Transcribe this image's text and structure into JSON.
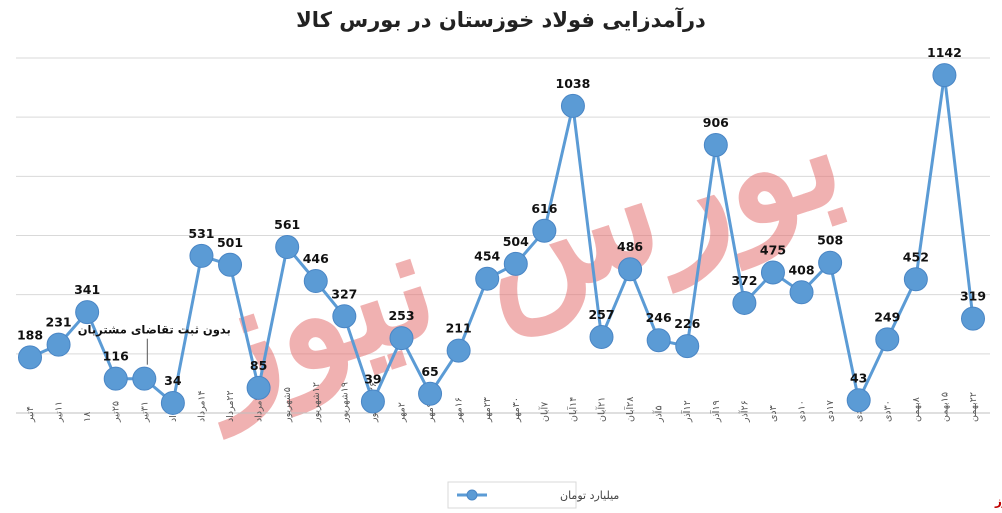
{
  "chart_data": {
    "type": "line",
    "title": "درآمدزایی فولاد خوزستان در بورس کالا",
    "series": [
      {
        "name": "میلیارد تومان",
        "color": "#5b9bd5",
        "values": [
          188,
          231,
          341,
          116,
          116,
          34,
          531,
          501,
          85,
          561,
          446,
          327,
          39,
          253,
          65,
          211,
          454,
          504,
          616,
          1038,
          257,
          486,
          246,
          226,
          906,
          372,
          475,
          408,
          508,
          43,
          249,
          452,
          1142,
          319
        ]
      }
    ],
    "categories": [
      "۴تیر",
      "۱۱تیر",
      "۱۸",
      "۲۵تیر",
      "۳۱تیر",
      "۷مرداد",
      "۱۴مرداد",
      "۲۲مرداد",
      "۲۹مرداد",
      "۵شهریور",
      "۱۲شهریور",
      "۱۹شهریور",
      "۲۶شهریور",
      "۲مهر",
      "۹مهر",
      "۱۶مهر",
      "۲۳مهر",
      "۳۰مهر",
      "۷آبان",
      "۱۴آبان",
      "۲۱آبان",
      "۲۸آبان",
      "۵آذر",
      "۱۲آذر",
      "۱۹آذر",
      "۲۶آذر",
      "۳دی",
      "۱۰دی",
      "۱۷دی",
      "۲۴دی",
      "۳۰دی",
      "۸بهمن",
      "۱۵بهمن",
      "۲۲بهمن"
    ],
    "data_labels": [
      "188",
      "231",
      "341",
      "116",
      "",
      "34",
      "531",
      "501",
      "85",
      "561",
      "446",
      "327",
      "39",
      "253",
      "65",
      "211",
      "454",
      "504",
      "616",
      "1038",
      "257",
      "486",
      "246",
      "226",
      "906",
      "372",
      "475",
      "408",
      "508",
      "43",
      "249",
      "452",
      "1142",
      "319"
    ],
    "annotation": {
      "text": "بدون ثبت تقاضای مشتریان",
      "category_index": 4
    },
    "ylim": [
      0,
      1200
    ],
    "grid": true,
    "legend": "bottom-center",
    "watermark": "بورس نیوز",
    "source_label": "بورس نیوز"
  }
}
